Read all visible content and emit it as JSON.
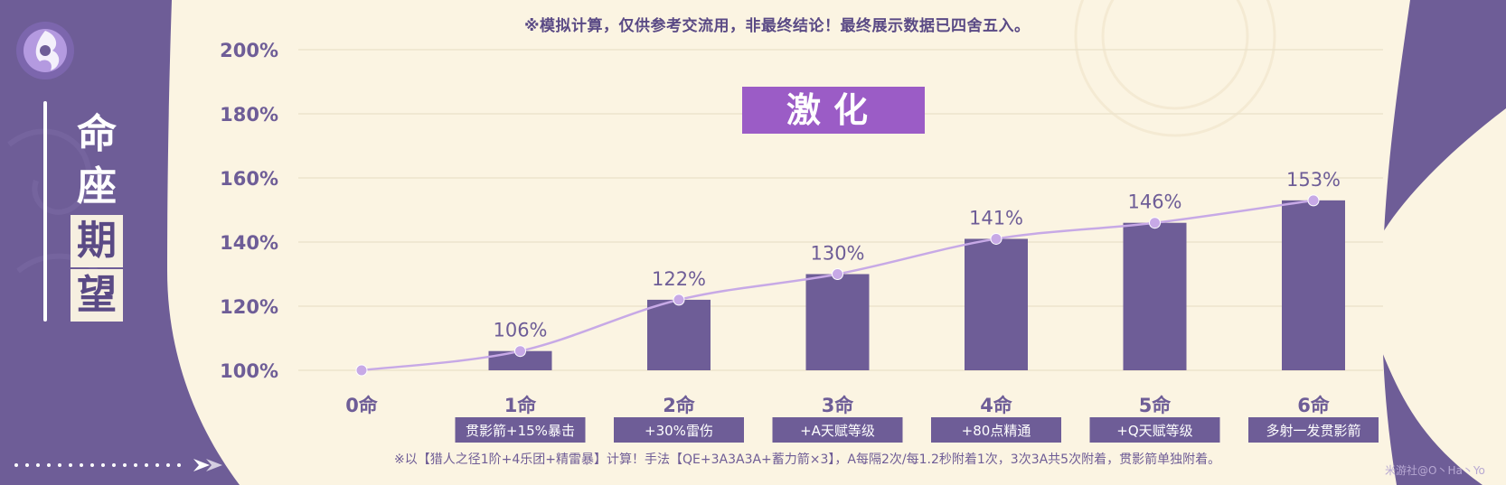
{
  "sidebar": {
    "title_chars": [
      "命",
      "座",
      "期",
      "望"
    ]
  },
  "notes": {
    "top": "※模拟计算，仅供参考交流用，非最终结论！最终展示数据已四舍五入。",
    "bottom": "※以【猎人之径1阶+4乐团+精雷暴】计算！手法【QE+3A3A3A+蓄力箭×3】，A每隔2次/每1.2秒附着1次，3次3A共5次附着，贯影箭单独附着。",
    "watermark": "米游社@O丶Ha丶Yo"
  },
  "colors": {
    "bar": "#6e5d97",
    "line": "#c7a9e6",
    "title_box": "#9b5cc6",
    "label_box": "#6e5d97",
    "panel": "#fbf4e2",
    "axis_text": "#6e5d97"
  },
  "chart_data": {
    "type": "bar",
    "title": "激化",
    "categories": [
      "0命",
      "1命",
      "2命",
      "3命",
      "4命",
      "5命",
      "6命"
    ],
    "sublabels": [
      "",
      "贯影箭+15%暴击",
      "+30%雷伤",
      "+A天赋等级",
      "+80点精通",
      "+Q天赋等级",
      "多射一发贯影箭"
    ],
    "values": [
      100,
      106,
      122,
      130,
      141,
      146,
      153
    ],
    "value_labels": [
      "",
      "106%",
      "122%",
      "130%",
      "141%",
      "146%",
      "153%"
    ],
    "y_ticks": [
      100,
      120,
      140,
      160,
      180,
      200
    ],
    "y_tick_labels": [
      "100%",
      "120%",
      "140%",
      "160%",
      "180%",
      "200%"
    ],
    "ylim": [
      100,
      200
    ],
    "grid": true,
    "overlay_line": true
  }
}
